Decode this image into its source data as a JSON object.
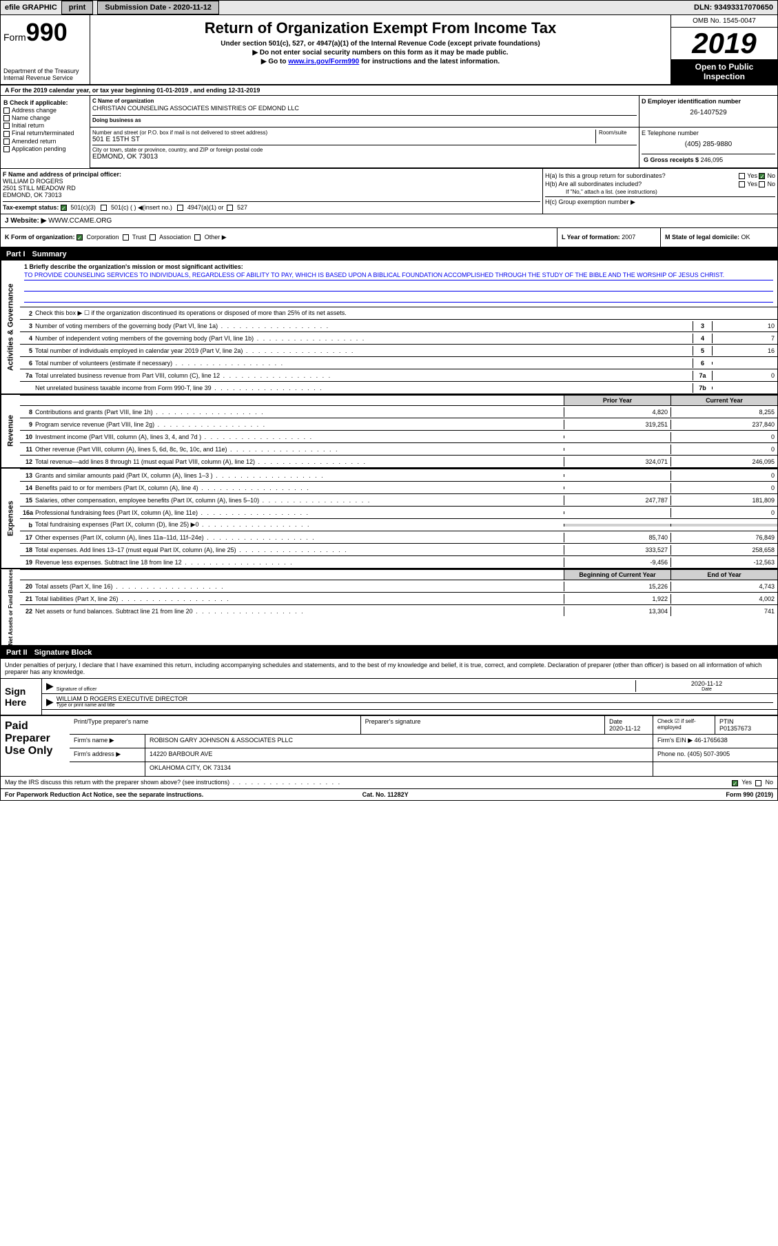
{
  "topbar": {
    "efile": "efile GRAPHIC",
    "print": "print",
    "subdate_label": "Submission Date - 2020-11-12",
    "dln": "DLN: 93493317070650"
  },
  "header": {
    "form_label": "Form",
    "form_num": "990",
    "dept": "Department of the Treasury\nInternal Revenue Service",
    "title": "Return of Organization Exempt From Income Tax",
    "sub1": "Under section 501(c), 527, or 4947(a)(1) of the Internal Revenue Code (except private foundations)",
    "sub2": "▶ Do not enter social security numbers on this form as it may be made public.",
    "sub3_pre": "▶ Go to ",
    "sub3_link": "www.irs.gov/Form990",
    "sub3_post": " for instructions and the latest information.",
    "omb": "OMB No. 1545-0047",
    "year": "2019",
    "open": "Open to Public Inspection"
  },
  "rowA": "A For the 2019 calendar year, or tax year beginning 01-01-2019     , and ending 12-31-2019",
  "secB": {
    "label": "B Check if applicable:",
    "opts": [
      "Address change",
      "Name change",
      "Initial return",
      "Final return/terminated",
      "Amended return",
      "Application pending"
    ]
  },
  "org": {
    "name_lbl": "C Name of organization",
    "name": "CHRISTIAN COUNSELING ASSOCIATES MINISTRIES OF EDMOND LLC",
    "dba_lbl": "Doing business as",
    "dba": "",
    "addr_lbl": "Number and street (or P.O. box if mail is not delivered to street address)",
    "room_lbl": "Room/suite",
    "addr": "501 E 15TH ST",
    "city_lbl": "City or town, state or province, country, and ZIP or foreign postal code",
    "city": "EDMOND, OK  73013",
    "ein_lbl": "D Employer identification number",
    "ein": "26-1407529",
    "phone_lbl": "E Telephone number",
    "phone": "(405) 285-9880",
    "gross_lbl": "G Gross receipts $",
    "gross": "246,095"
  },
  "officer": {
    "lbl": "F  Name and address of principal officer:",
    "name": "WILLIAM D ROGERS",
    "addr": "2501 STILL MEADOW RD",
    "city": "EDMOND, OK  73013"
  },
  "secH": {
    "ha": "H(a)  Is this a group return for subordinates?",
    "ha_ans": "No",
    "hb": "H(b)  Are all subordinates included?",
    "hb_note": "If \"No,\" attach a list. (see instructions)",
    "hc": "H(c)  Group exemption number ▶"
  },
  "rowI": {
    "label": "Tax-exempt status:",
    "sel": "501(c)(3)",
    "o2": "501(c) (  ) ◀(insert no.)",
    "o3": "4947(a)(1) or",
    "o4": "527"
  },
  "rowJ": {
    "label": "J",
    "text": "Website: ▶",
    "val": "WWW.CCAME.ORG"
  },
  "rowK": {
    "label": "K Form of organization:",
    "sel": "Corporation",
    "o2": "Trust",
    "o3": "Association",
    "o4": "Other ▶"
  },
  "rowL": {
    "label": "L Year of formation:",
    "val": "2007"
  },
  "rowM": {
    "label": "M State of legal domicile:",
    "val": "OK"
  },
  "part1": {
    "num": "Part I",
    "title": "Summary"
  },
  "mission": {
    "lbl": "1  Briefly describe the organization's mission or most significant activities:",
    "text": "TO PROVIDE COUNSELING SERVICES TO INDIVIDUALS, REGARDLESS OF ABILITY TO PAY, WHICH IS BASED UPON A BIBLICAL FOUNDATION ACCOMPLISHED THROUGH THE STUDY OF THE BIBLE AND THE WORSHIP OF JESUS CHRIST."
  },
  "line2": "Check this box ▶ ☐  if the organization discontinued its operations or disposed of more than 25% of its net assets.",
  "act_rows": [
    {
      "n": "3",
      "d": "Number of voting members of the governing body (Part VI, line 1a)",
      "box": "3",
      "v": "10"
    },
    {
      "n": "4",
      "d": "Number of independent voting members of the governing body (Part VI, line 1b)",
      "box": "4",
      "v": "7"
    },
    {
      "n": "5",
      "d": "Total number of individuals employed in calendar year 2019 (Part V, line 2a)",
      "box": "5",
      "v": "16"
    },
    {
      "n": "6",
      "d": "Total number of volunteers (estimate if necessary)",
      "box": "6",
      "v": ""
    },
    {
      "n": "7a",
      "d": "Total unrelated business revenue from Part VIII, column (C), line 12",
      "box": "7a",
      "v": "0"
    },
    {
      "n": "",
      "d": "Net unrelated business taxable income from Form 990-T, line 39",
      "box": "7b",
      "v": ""
    }
  ],
  "col_hdrs": {
    "prior": "Prior Year",
    "curr": "Current Year"
  },
  "rev_rows": [
    {
      "n": "8",
      "d": "Contributions and grants (Part VIII, line 1h)",
      "p": "4,820",
      "c": "8,255"
    },
    {
      "n": "9",
      "d": "Program service revenue (Part VIII, line 2g)",
      "p": "319,251",
      "c": "237,840"
    },
    {
      "n": "10",
      "d": "Investment income (Part VIII, column (A), lines 3, 4, and 7d )",
      "p": "",
      "c": "0"
    },
    {
      "n": "11",
      "d": "Other revenue (Part VIII, column (A), lines 5, 6d, 8c, 9c, 10c, and 11e)",
      "p": "",
      "c": "0"
    },
    {
      "n": "12",
      "d": "Total revenue—add lines 8 through 11 (must equal Part VIII, column (A), line 12)",
      "p": "324,071",
      "c": "246,095"
    }
  ],
  "exp_rows": [
    {
      "n": "13",
      "d": "Grants and similar amounts paid (Part IX, column (A), lines 1–3 )",
      "p": "",
      "c": "0"
    },
    {
      "n": "14",
      "d": "Benefits paid to or for members (Part IX, column (A), line 4)",
      "p": "",
      "c": "0"
    },
    {
      "n": "15",
      "d": "Salaries, other compensation, employee benefits (Part IX, column (A), lines 5–10)",
      "p": "247,787",
      "c": "181,809"
    },
    {
      "n": "16a",
      "d": "Professional fundraising fees (Part IX, column (A), line 11e)",
      "p": "",
      "c": "0"
    },
    {
      "n": "b",
      "d": "Total fundraising expenses (Part IX, column (D), line 25) ▶0",
      "p": "gray",
      "c": "gray"
    },
    {
      "n": "17",
      "d": "Other expenses (Part IX, column (A), lines 11a–11d, 11f–24e)",
      "p": "85,740",
      "c": "76,849"
    },
    {
      "n": "18",
      "d": "Total expenses. Add lines 13–17 (must equal Part IX, column (A), line 25)",
      "p": "333,527",
      "c": "258,658"
    },
    {
      "n": "19",
      "d": "Revenue less expenses. Subtract line 18 from line 12",
      "p": "-9,456",
      "c": "-12,563"
    }
  ],
  "na_hdrs": {
    "prior": "Beginning of Current Year",
    "curr": "End of Year"
  },
  "na_rows": [
    {
      "n": "20",
      "d": "Total assets (Part X, line 16)",
      "p": "15,226",
      "c": "4,743"
    },
    {
      "n": "21",
      "d": "Total liabilities (Part X, line 26)",
      "p": "1,922",
      "c": "4,002"
    },
    {
      "n": "22",
      "d": "Net assets or fund balances. Subtract line 21 from line 20",
      "p": "13,304",
      "c": "741"
    }
  ],
  "part2": {
    "num": "Part II",
    "title": "Signature Block"
  },
  "sig_decl": "Under penalties of perjury, I declare that I have examined this return, including accompanying schedules and statements, and to the best of my knowledge and belief, it is true, correct, and complete. Declaration of preparer (other than officer) is based on all information of which preparer has any knowledge.",
  "sig": {
    "here": "Sign Here",
    "sig_lbl": "Signature of officer",
    "date_lbl": "Date",
    "date": "2020-11-12",
    "name": "WILLIAM D ROGERS  EXECUTIVE DIRECTOR",
    "name_lbl": "Type or print name and title"
  },
  "paid": {
    "here": "Paid Preparer Use Only",
    "h1": "Print/Type preparer's name",
    "h2": "Preparer's signature",
    "h3": "Date",
    "h3v": "2020-11-12",
    "h4": "Check ☑ if self-employed",
    "h5": "PTIN",
    "h5v": "P01357673",
    "firm_lbl": "Firm's name    ▶",
    "firm": "ROBISON GARY JOHNSON & ASSOCIATES PLLC",
    "ein_lbl": "Firm's EIN ▶",
    "ein": "46-1765638",
    "addr_lbl": "Firm's address ▶",
    "addr": "14220 BARBOUR AVE",
    "addr2": "OKLAHOMA CITY, OK  73134",
    "phone_lbl": "Phone no.",
    "phone": "(405) 507-3905"
  },
  "discuss": "May the IRS discuss this return with the preparer shown above? (see instructions)",
  "discuss_ans": "Yes",
  "footer": {
    "l": "For Paperwork Reduction Act Notice, see the separate instructions.",
    "m": "Cat. No. 11282Y",
    "r": "Form 990 (2019)"
  },
  "side_labels": {
    "act": "Activities & Governance",
    "rev": "Revenue",
    "exp": "Expenses",
    "na": "Net Assets or Fund Balances"
  }
}
